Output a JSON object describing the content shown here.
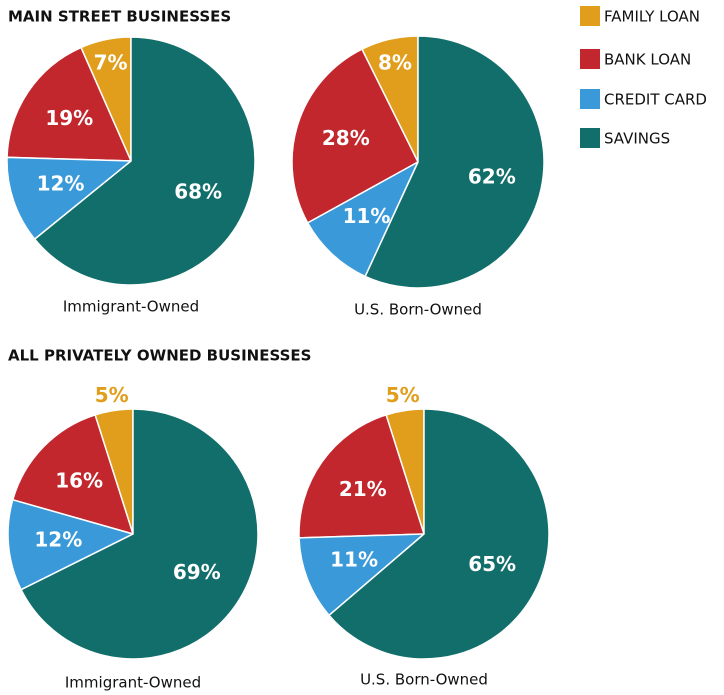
{
  "legend": {
    "categories": [
      "FAMILY LOAN",
      "BANK LOAN",
      "CREDIT CARD",
      "SAVINGS"
    ],
    "colors": [
      "#e09e1c",
      "#c1272d",
      "#3a9ad9",
      "#126e6b"
    ]
  },
  "chart_data": [
    {
      "type": "pie",
      "title": "MAIN STREET BUSINESSES",
      "pies": [
        {
          "label": "Immigrant-Owned",
          "values": [
            7,
            19,
            12,
            68
          ],
          "value_labels": [
            "7%",
            "19%",
            "12%",
            "68%"
          ]
        },
        {
          "label": "U.S. Born-Owned",
          "values": [
            8,
            28,
            11,
            62
          ],
          "value_labels": [
            "8%",
            "28%",
            "11%",
            "62%"
          ]
        }
      ]
    },
    {
      "type": "pie",
      "title": "ALL PRIVATELY OWNED BUSINESSES",
      "pies": [
        {
          "label": "Immigrant-Owned",
          "values": [
            5,
            16,
            12,
            69
          ],
          "value_labels": [
            "5%",
            "16%",
            "12%",
            "69%"
          ]
        },
        {
          "label": "U.S. Born-Owned",
          "values": [
            5,
            21,
            11,
            65
          ],
          "value_labels": [
            "5%",
            "21%",
            "11%",
            "65%"
          ]
        }
      ]
    }
  ]
}
